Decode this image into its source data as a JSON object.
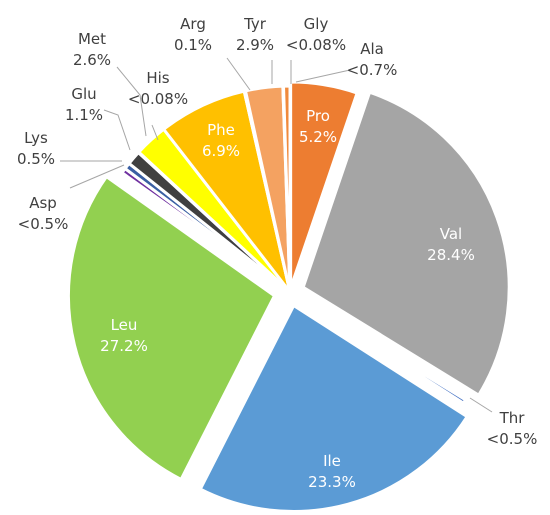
{
  "chart_data": {
    "type": "pie",
    "slices": [
      {
        "name": "Pro",
        "label_value": "5.2%",
        "value": 5.2,
        "color": "#ED7D31"
      },
      {
        "name": "Val",
        "label_value": "28.4%",
        "value": 28.4,
        "color": "#A5A5A5"
      },
      {
        "name": "Thr",
        "label_value": "<0.5%",
        "value": 0.3,
        "color": "#4472C4"
      },
      {
        "name": "Ile",
        "label_value": "23.3%",
        "value": 23.3,
        "color": "#5B9BD5"
      },
      {
        "name": "Leu",
        "label_value": "27.2%",
        "value": 27.2,
        "color": "#92D050"
      },
      {
        "name": "Asp",
        "label_value": "<0.5%",
        "value": 0.4,
        "color": "#7030A0"
      },
      {
        "name": "Lys",
        "label_value": "0.5%",
        "value": 0.5,
        "color": "#3A5FA3"
      },
      {
        "name": "Glu",
        "label_value": "1.1%",
        "value": 1.1,
        "color": "#404040"
      },
      {
        "name": "His",
        "label_value": "<0.08%",
        "value": 0.05,
        "color": "#2F5597"
      },
      {
        "name": "Met",
        "label_value": "2.6%",
        "value": 2.6,
        "color": "#FFFF00"
      },
      {
        "name": "Phe",
        "label_value": "6.9%",
        "value": 6.9,
        "color": "#FFC000"
      },
      {
        "name": "Arg",
        "label_value": "0.1%",
        "value": 0.1,
        "color": "#C9A227"
      },
      {
        "name": "Tyr",
        "label_value": "2.9%",
        "value": 2.9,
        "color": "#F4A261"
      },
      {
        "name": "Gly",
        "label_value": "<0.08%",
        "value": 0.05,
        "color": "#E9A36B"
      },
      {
        "name": "Ala",
        "label_value": "<0.7%",
        "value": 0.5,
        "color": "#F08A3C"
      }
    ],
    "legend": "none"
  }
}
